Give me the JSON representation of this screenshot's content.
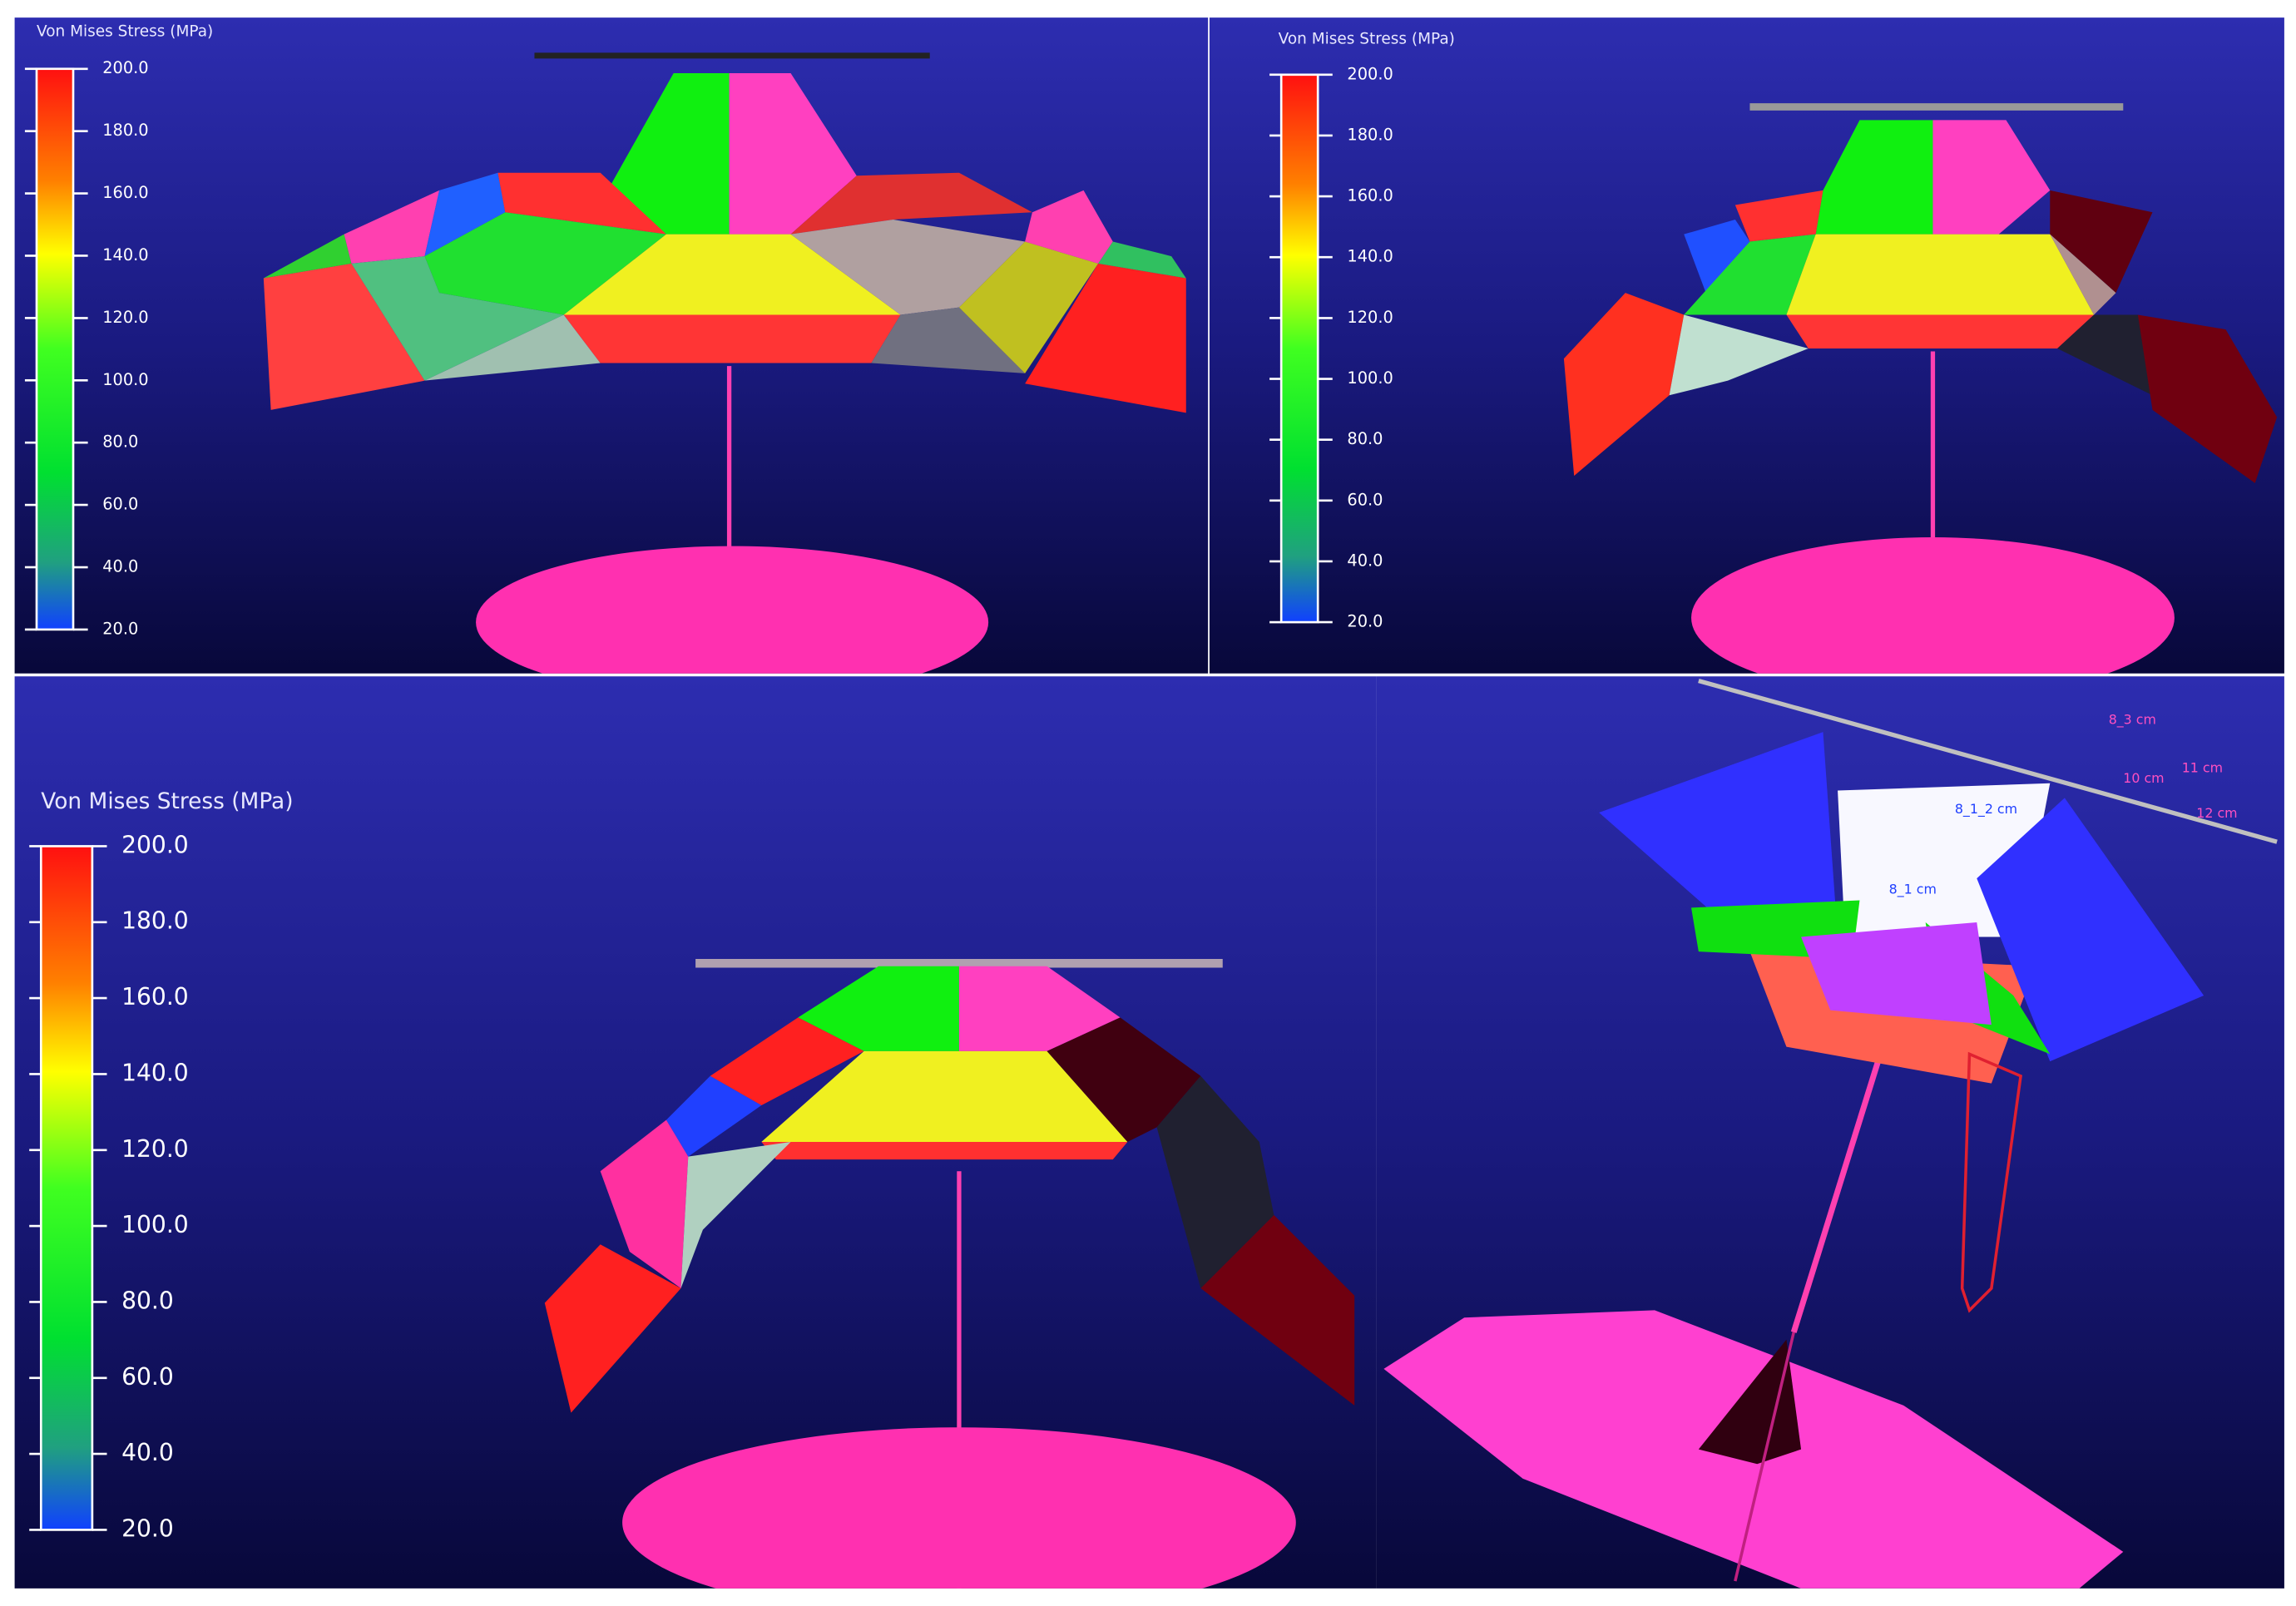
{
  "panels": [
    {
      "legend": {
        "title": "Von Mises Stress (MPa)",
        "ticks": [
          {
            "value": 200,
            "label": "200.0"
          },
          {
            "value": 180,
            "label": "180.0"
          },
          {
            "value": 160,
            "label": "160.0"
          },
          {
            "value": 140,
            "label": "140.0"
          },
          {
            "value": 120,
            "label": "120.0"
          },
          {
            "value": 100,
            "label": "100.0"
          },
          {
            "value": 80,
            "label": "80.0"
          },
          {
            "value": 60,
            "label": "60.0"
          },
          {
            "value": 40,
            "label": "40.0"
          },
          {
            "value": 20,
            "label": "20.0"
          }
        ]
      }
    },
    {
      "legend": {
        "title": "Von Mises Stress (MPa)",
        "ticks": [
          {
            "value": 200,
            "label": "200.0"
          },
          {
            "value": 180,
            "label": "180.0"
          },
          {
            "value": 160,
            "label": "160.0"
          },
          {
            "value": 140,
            "label": "140.0"
          },
          {
            "value": 120,
            "label": "120.0"
          },
          {
            "value": 100,
            "label": "100.0"
          },
          {
            "value": 80,
            "label": "80.0"
          },
          {
            "value": 60,
            "label": "60.0"
          },
          {
            "value": 40,
            "label": "40.0"
          },
          {
            "value": 20,
            "label": "20.0"
          }
        ]
      }
    },
    {
      "legend": {
        "title": "Von Mises Stress (MPa)",
        "ticks": [
          {
            "value": 200,
            "label": "200.0"
          },
          {
            "value": 180,
            "label": "180.0"
          },
          {
            "value": 160,
            "label": "160.0"
          },
          {
            "value": 140,
            "label": "140.0"
          },
          {
            "value": 120,
            "label": "120.0"
          },
          {
            "value": 100,
            "label": "100.0"
          },
          {
            "value": 80,
            "label": "80.0"
          },
          {
            "value": 60,
            "label": "60.0"
          },
          {
            "value": 40,
            "label": "40.0"
          },
          {
            "value": 20,
            "label": "20.0"
          }
        ]
      }
    },
    {
      "dimension_labels": [
        "8_3 cm",
        "10 cm",
        "11 cm",
        "12 cm",
        "8_1_2 cm",
        "8_1 cm"
      ]
    }
  ]
}
